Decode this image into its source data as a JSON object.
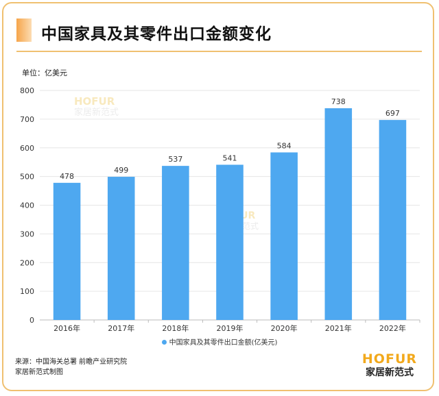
{
  "header": {
    "title": "中国家具及其零件出口金额变化",
    "unit": "单位：亿美元"
  },
  "watermark": {
    "logo": "HOFUR",
    "name": "家居新范式"
  },
  "chart_data": {
    "type": "bar",
    "categories": [
      "2016年",
      "2017年",
      "2018年",
      "2019年",
      "2020年",
      "2021年",
      "2022年"
    ],
    "series": [
      {
        "name": "中国家具及其零件出口金额(亿美元)",
        "values": [
          478,
          499,
          537,
          541,
          584,
          738,
          697
        ]
      }
    ],
    "ylim": [
      0,
      800
    ],
    "yticks": [
      0,
      100,
      200,
      300,
      400,
      500,
      600,
      700,
      800
    ],
    "grid": true,
    "legend_position": "bottom",
    "bar_color": "#4ea8f0",
    "data_labels": true
  },
  "legend": {
    "label": "中国家具及其零件出口金额(亿美元)"
  },
  "footer": {
    "source_line1": "来源：中国海关总署 前瞻产业研究院",
    "source_line2": "家居新范式制图",
    "brand_logo": "HOFUR",
    "brand_name": "家居新范式"
  }
}
